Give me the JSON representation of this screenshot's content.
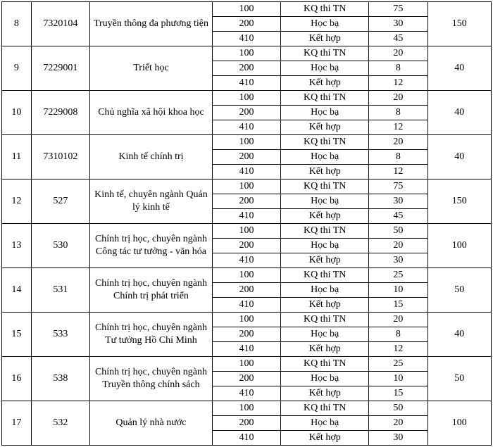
{
  "table": {
    "colors": {
      "border": "#000000",
      "background": "#ffffff",
      "text": "#000000"
    },
    "fontsize": 14,
    "column_widths_pct": [
      6,
      12,
      25,
      14,
      18,
      12,
      13
    ],
    "rows": [
      {
        "stt": "8",
        "code": "7320104",
        "name": "Truyền thông đa phương tiện",
        "subrows": [
          {
            "c1": "100",
            "c2": "KQ thi TN",
            "c3": "75"
          },
          {
            "c1": "200",
            "c2": "Học bạ",
            "c3": "30"
          },
          {
            "c1": "410",
            "c2": "Kết hợp",
            "c3": "45"
          }
        ],
        "total": "150"
      },
      {
        "stt": "9",
        "code": "7229001",
        "name": "Triết học",
        "subrows": [
          {
            "c1": "100",
            "c2": "KQ thi TN",
            "c3": "20"
          },
          {
            "c1": "200",
            "c2": "Học bạ",
            "c3": "8"
          },
          {
            "c1": "410",
            "c2": "Kết hợp",
            "c3": "12"
          }
        ],
        "total": "40"
      },
      {
        "stt": "10",
        "code": "7229008",
        "name": "Chủ nghĩa xã hội khoa học",
        "subrows": [
          {
            "c1": "100",
            "c2": "KQ thi TN",
            "c3": "20"
          },
          {
            "c1": "200",
            "c2": "Học bạ",
            "c3": "8"
          },
          {
            "c1": "410",
            "c2": "Kết hợp",
            "c3": "12"
          }
        ],
        "total": "40"
      },
      {
        "stt": "11",
        "code": "7310102",
        "name": "Kinh tế chính trị",
        "subrows": [
          {
            "c1": "100",
            "c2": "KQ thi TN",
            "c3": "20"
          },
          {
            "c1": "200",
            "c2": "Học bạ",
            "c3": "8"
          },
          {
            "c1": "410",
            "c2": "Kết hợp",
            "c3": "12"
          }
        ],
        "total": "40"
      },
      {
        "stt": "12",
        "code": "527",
        "name": "Kinh tế, chuyên ngành Quản lý kinh tế",
        "subrows": [
          {
            "c1": "100",
            "c2": "KQ thi TN",
            "c3": "75"
          },
          {
            "c1": "200",
            "c2": "Học bạ",
            "c3": "30"
          },
          {
            "c1": "410",
            "c2": "Kết hợp",
            "c3": "45"
          }
        ],
        "total": "150"
      },
      {
        "stt": "13",
        "code": "530",
        "name": "Chính trị học, chuyên ngành Công tác tư tưởng - văn hóa",
        "subrows": [
          {
            "c1": "100",
            "c2": "KQ thi TN",
            "c3": "50"
          },
          {
            "c1": "200",
            "c2": "Học bạ",
            "c3": "20"
          },
          {
            "c1": "410",
            "c2": "Kết hợp",
            "c3": "30"
          }
        ],
        "total": "100"
      },
      {
        "stt": "14",
        "code": "531",
        "name": "Chính trị học, chuyên ngành Chính trị phát triển",
        "subrows": [
          {
            "c1": "100",
            "c2": "KQ thi TN",
            "c3": "25"
          },
          {
            "c1": "200",
            "c2": "Học bạ",
            "c3": "10"
          },
          {
            "c1": "410",
            "c2": "Kết hợp",
            "c3": "15"
          }
        ],
        "total": "50"
      },
      {
        "stt": "15",
        "code": "533",
        "name": "Chính trị học, chuyên ngành Tư tưởng Hồ Chí Minh",
        "subrows": [
          {
            "c1": "100",
            "c2": "KQ thi TN",
            "c3": "20"
          },
          {
            "c1": "200",
            "c2": "Học bạ",
            "c3": "8"
          },
          {
            "c1": "410",
            "c2": "Kết hợp",
            "c3": "12"
          }
        ],
        "total": "40"
      },
      {
        "stt": "16",
        "code": "538",
        "name": "Chính trị học, chuyên ngành Truyền thông chính sách",
        "subrows": [
          {
            "c1": "100",
            "c2": "KQ thi TN",
            "c3": "25"
          },
          {
            "c1": "200",
            "c2": "Học bạ",
            "c3": "10"
          },
          {
            "c1": "410",
            "c2": "Kết hợp",
            "c3": "15"
          }
        ],
        "total": "50"
      },
      {
        "stt": "17",
        "code": "532",
        "name": "Quản lý nhà nước",
        "subrows": [
          {
            "c1": "100",
            "c2": "KQ thi TN",
            "c3": "50"
          },
          {
            "c1": "200",
            "c2": "Học bạ",
            "c3": "20"
          },
          {
            "c1": "410",
            "c2": "Kết hợp",
            "c3": "30"
          }
        ],
        "total": "100"
      }
    ]
  }
}
